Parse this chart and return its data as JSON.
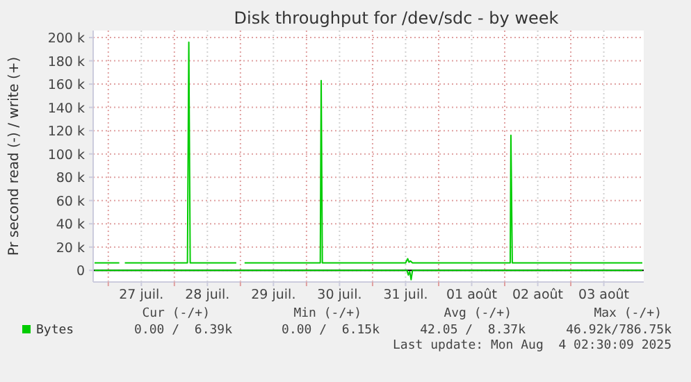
{
  "chart_data": {
    "type": "line",
    "title": "Disk throughput for /dev/sdc - by week",
    "ylabel": "Pr second read (-) / write (+)",
    "xlim": [
      "2025-07-26T18:30",
      "2025-08-04T02:30"
    ],
    "xticks": [
      {
        "value": "2025-07-27T00:00",
        "label": null
      },
      {
        "value": "2025-07-27T12:00",
        "label": "27 juil."
      },
      {
        "value": "2025-07-28T00:00",
        "label": null
      },
      {
        "value": "2025-07-28T12:00",
        "label": "28 juil."
      },
      {
        "value": "2025-07-29T00:00",
        "label": null
      },
      {
        "value": "2025-07-29T12:00",
        "label": "29 juil."
      },
      {
        "value": "2025-07-30T00:00",
        "label": null
      },
      {
        "value": "2025-07-30T12:00",
        "label": "30 juil."
      },
      {
        "value": "2025-07-31T00:00",
        "label": null
      },
      {
        "value": "2025-07-31T12:00",
        "label": "31 juil."
      },
      {
        "value": "2025-08-01T00:00",
        "label": null
      },
      {
        "value": "2025-08-01T12:00",
        "label": "01 août"
      },
      {
        "value": "2025-08-02T00:00",
        "label": null
      },
      {
        "value": "2025-08-02T12:00",
        "label": "02 août"
      },
      {
        "value": "2025-08-03T00:00",
        "label": null
      },
      {
        "value": "2025-08-03T12:00",
        "label": "03 août"
      }
    ],
    "ylim": [
      -10000,
      206000
    ],
    "yticks": [
      0,
      {
        "value": 20000,
        "label": "20 k"
      },
      {
        "value": 40000,
        "label": "40 k"
      },
      {
        "value": 60000,
        "label": "60 k"
      },
      {
        "value": 80000,
        "label": "80 k"
      },
      {
        "value": 100000,
        "label": "100 k"
      },
      {
        "value": 120000,
        "label": "120 k"
      },
      {
        "value": 140000,
        "label": "140 k"
      },
      {
        "value": 160000,
        "label": "160 k"
      },
      {
        "value": 180000,
        "label": "180 k"
      },
      {
        "value": 200000,
        "label": "200 k"
      }
    ],
    "grid": true,
    "legend": "bottom left",
    "series": [
      {
        "name": "Bytes",
        "color": "#00cc00",
        "x": [
          "2025-07-26T19:00",
          "2025-07-27T04:00",
          "2025-07-27T05:00",
          "2025-07-27T06:00",
          "2025-07-28T04:45",
          "2025-07-28T05:15",
          "2025-07-28T05:45",
          "2025-07-28T22:30",
          "2025-07-29T00:00",
          "2025-07-29T01:30",
          "2025-07-30T05:00",
          "2025-07-30T05:20",
          "2025-07-30T05:45",
          "2025-07-31T12:00",
          "2025-07-31T12:45",
          "2025-07-31T13:15",
          "2025-07-31T13:45",
          "2025-07-31T14:30",
          "2025-08-02T02:00",
          "2025-08-02T02:15",
          "2025-08-02T02:45",
          "2025-08-04T02:00"
        ],
        "values": [
          6400,
          6400,
          null,
          6400,
          6400,
          196000,
          6400,
          6400,
          null,
          6400,
          6400,
          163000,
          6400,
          6400,
          10000,
          7000,
          8000,
          6400,
          6400,
          116000,
          6400,
          6400
        ]
      },
      {
        "color": "#00cc00",
        "x": [
          "2025-07-26T19:00",
          "2025-07-31T12:30",
          "2025-07-31T13:00",
          "2025-07-31T13:30",
          "2025-07-31T14:00",
          "2025-07-31T14:30",
          "2025-08-04T02:00"
        ],
        "values": [
          0,
          0,
          -4000,
          -1000,
          -8000,
          0,
          0
        ]
      }
    ],
    "annotations": [
      "Cur (-/+)",
      "Min (-/+)",
      "Avg (-/+)",
      "Max (-/+)",
      "0.00 /  6.39k",
      "0.00 /  6.15k",
      "42.05 /  8.37k",
      "46.92k/786.75k",
      "Last update: Mon Aug  4 02:30:09 2025"
    ]
  }
}
